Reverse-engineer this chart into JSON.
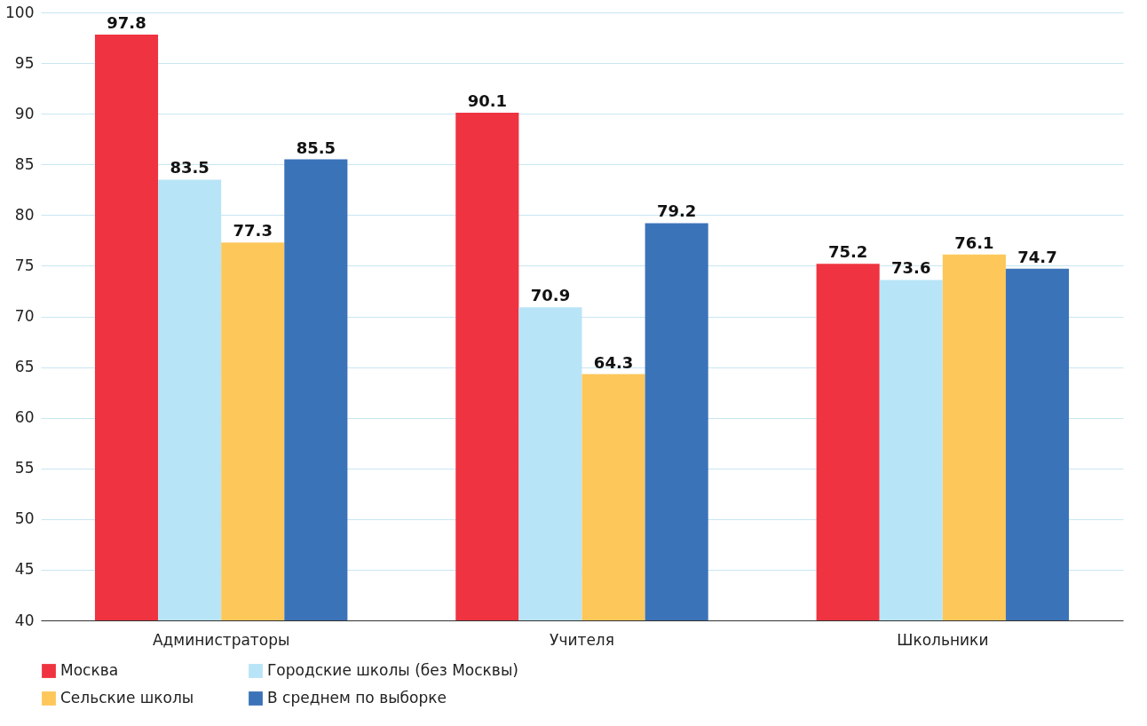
{
  "chart_data": {
    "type": "bar",
    "categories": [
      "Администраторы",
      "Учителя",
      "Школьники"
    ],
    "series": [
      {
        "name": "Москва",
        "color": "#ef3340",
        "values": [
          97.8,
          90.1,
          75.2
        ]
      },
      {
        "name": "Городские школы (без Москвы)",
        "color": "#b8e4f7",
        "values": [
          83.5,
          70.9,
          73.6
        ]
      },
      {
        "name": "Сельские школы",
        "color": "#fdc75a",
        "values": [
          77.3,
          64.3,
          76.1
        ]
      },
      {
        "name": "В среднем по выборке",
        "color": "#3b73b9",
        "values": [
          85.5,
          79.2,
          74.7
        ]
      }
    ],
    "ylim": [
      40,
      100
    ],
    "yticks": [
      40,
      45,
      50,
      55,
      60,
      65,
      70,
      75,
      80,
      85,
      90,
      95,
      100
    ],
    "grid": "y",
    "legend": "bottom",
    "data_labels": true
  }
}
